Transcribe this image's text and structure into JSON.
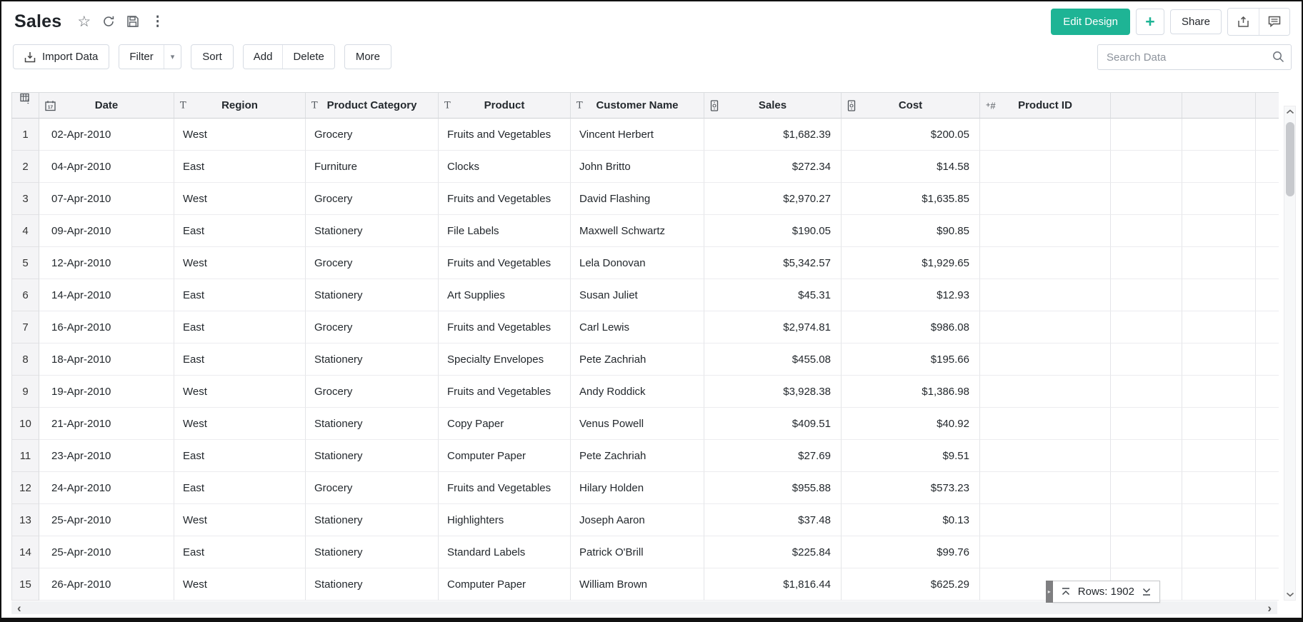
{
  "header": {
    "title": "Sales",
    "edit_design_label": "Edit Design",
    "share_label": "Share"
  },
  "toolbar": {
    "import_label": "Import Data",
    "filter_label": "Filter",
    "sort_label": "Sort",
    "add_label": "Add",
    "delete_label": "Delete",
    "more_label": "More",
    "search_placeholder": "Search Data"
  },
  "colors": {
    "accent": "#1eb495",
    "header_bg": "#f4f4f6",
    "grid_line": "#e4e5e8"
  },
  "table": {
    "columns": [
      {
        "key": "num",
        "label": "",
        "icon": "select-all-icon"
      },
      {
        "key": "date",
        "label": "Date",
        "icon": "calendar-icon"
      },
      {
        "key": "region",
        "label": "Region",
        "icon": "text-type-icon"
      },
      {
        "key": "category",
        "label": "Product Category",
        "icon": "text-type-icon"
      },
      {
        "key": "product",
        "label": "Product",
        "icon": "text-type-icon"
      },
      {
        "key": "customer",
        "label": "Customer Name",
        "icon": "text-type-icon"
      },
      {
        "key": "sales",
        "label": "Sales",
        "icon": "currency-type-icon"
      },
      {
        "key": "cost",
        "label": "Cost",
        "icon": "currency-type-icon"
      },
      {
        "key": "product_id",
        "label": "Product ID",
        "icon": "positive-number-type-icon"
      },
      {
        "key": "extra1",
        "label": "",
        "icon": ""
      },
      {
        "key": "extra2",
        "label": "",
        "icon": ""
      },
      {
        "key": "extra3",
        "label": "",
        "icon": ""
      }
    ],
    "rows": [
      {
        "num": "1",
        "date": "02-Apr-2010",
        "region": "West",
        "category": "Grocery",
        "product": "Fruits and Vegetables",
        "customer": "Vincent Herbert",
        "sales": "$1,682.39",
        "cost": "$200.05",
        "product_id": ""
      },
      {
        "num": "2",
        "date": "04-Apr-2010",
        "region": "East",
        "category": "Furniture",
        "product": "Clocks",
        "customer": "John Britto",
        "sales": "$272.34",
        "cost": "$14.58",
        "product_id": ""
      },
      {
        "num": "3",
        "date": "07-Apr-2010",
        "region": "West",
        "category": "Grocery",
        "product": "Fruits and Vegetables",
        "customer": "David Flashing",
        "sales": "$2,970.27",
        "cost": "$1,635.85",
        "product_id": ""
      },
      {
        "num": "4",
        "date": "09-Apr-2010",
        "region": "East",
        "category": "Stationery",
        "product": "File Labels",
        "customer": "Maxwell Schwartz",
        "sales": "$190.05",
        "cost": "$90.85",
        "product_id": ""
      },
      {
        "num": "5",
        "date": "12-Apr-2010",
        "region": "West",
        "category": "Grocery",
        "product": "Fruits and Vegetables",
        "customer": "Lela Donovan",
        "sales": "$5,342.57",
        "cost": "$1,929.65",
        "product_id": ""
      },
      {
        "num": "6",
        "date": "14-Apr-2010",
        "region": "East",
        "category": "Stationery",
        "product": "Art Supplies",
        "customer": "Susan Juliet",
        "sales": "$45.31",
        "cost": "$12.93",
        "product_id": ""
      },
      {
        "num": "7",
        "date": "16-Apr-2010",
        "region": "East",
        "category": "Grocery",
        "product": "Fruits and Vegetables",
        "customer": "Carl Lewis",
        "sales": "$2,974.81",
        "cost": "$986.08",
        "product_id": ""
      },
      {
        "num": "8",
        "date": "18-Apr-2010",
        "region": "East",
        "category": "Stationery",
        "product": "Specialty Envelopes",
        "customer": "Pete Zachriah",
        "sales": "$455.08",
        "cost": "$195.66",
        "product_id": ""
      },
      {
        "num": "9",
        "date": "19-Apr-2010",
        "region": "West",
        "category": "Grocery",
        "product": "Fruits and Vegetables",
        "customer": "Andy Roddick",
        "sales": "$3,928.38",
        "cost": "$1,386.98",
        "product_id": ""
      },
      {
        "num": "10",
        "date": "21-Apr-2010",
        "region": "West",
        "category": "Stationery",
        "product": "Copy Paper",
        "customer": "Venus Powell",
        "sales": "$409.51",
        "cost": "$40.92",
        "product_id": ""
      },
      {
        "num": "11",
        "date": "23-Apr-2010",
        "region": "East",
        "category": "Stationery",
        "product": "Computer Paper",
        "customer": "Pete Zachriah",
        "sales": "$27.69",
        "cost": "$9.51",
        "product_id": ""
      },
      {
        "num": "12",
        "date": "24-Apr-2010",
        "region": "East",
        "category": "Grocery",
        "product": "Fruits and Vegetables",
        "customer": "Hilary Holden",
        "sales": "$955.88",
        "cost": "$573.23",
        "product_id": ""
      },
      {
        "num": "13",
        "date": "25-Apr-2010",
        "region": "West",
        "category": "Stationery",
        "product": "Highlighters",
        "customer": "Joseph Aaron",
        "sales": "$37.48",
        "cost": "$0.13",
        "product_id": ""
      },
      {
        "num": "14",
        "date": "25-Apr-2010",
        "region": "East",
        "category": "Stationery",
        "product": "Standard Labels",
        "customer": "Patrick O'Brill",
        "sales": "$225.84",
        "cost": "$99.76",
        "product_id": ""
      },
      {
        "num": "15",
        "date": "26-Apr-2010",
        "region": "West",
        "category": "Stationery",
        "product": "Computer Paper",
        "customer": "William Brown",
        "sales": "$1,816.44",
        "cost": "$625.29",
        "product_id": ""
      }
    ]
  },
  "status": {
    "rows_label": "Rows: 1902"
  }
}
